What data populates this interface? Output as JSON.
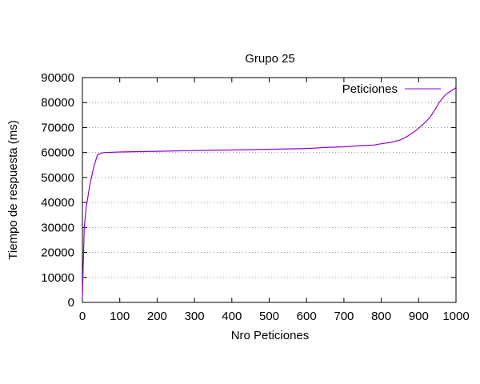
{
  "chart_data": {
    "type": "line",
    "title": "Grupo 25",
    "xlabel": "Nro Peticiones",
    "ylabel": "Tiempo de respuesta (ms)",
    "xlim": [
      0,
      1000
    ],
    "ylim": [
      0,
      90000
    ],
    "xticks": [
      0,
      100,
      200,
      300,
      400,
      500,
      600,
      700,
      800,
      900,
      1000
    ],
    "yticks": [
      0,
      10000,
      20000,
      30000,
      40000,
      50000,
      60000,
      70000,
      80000,
      90000
    ],
    "grid": "horizontal-dotted",
    "legend_position": "top-right",
    "series": [
      {
        "name": "Peticiones",
        "color": "#9400d3",
        "x": [
          0,
          5,
          10,
          20,
          30,
          40,
          50,
          60,
          100,
          200,
          300,
          400,
          500,
          600,
          650,
          700,
          750,
          780,
          800,
          830,
          850,
          870,
          890,
          910,
          930,
          945,
          955,
          965,
          975,
          985,
          1000
        ],
        "y": [
          2000,
          30000,
          38000,
          47000,
          54000,
          59000,
          59800,
          60000,
          60200,
          60500,
          60800,
          61000,
          61300,
          61600,
          62000,
          62300,
          62800,
          63000,
          63500,
          64200,
          65000,
          66500,
          68500,
          71000,
          74000,
          77500,
          80000,
          82000,
          83500,
          84500,
          86000
        ]
      }
    ]
  }
}
